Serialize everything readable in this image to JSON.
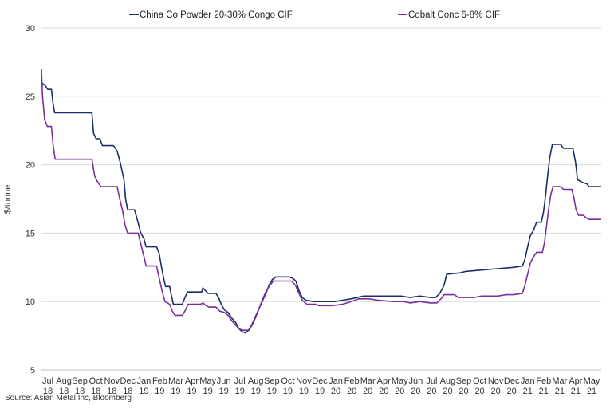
{
  "chart_data": {
    "type": "line",
    "title": "",
    "xlabel": "",
    "ylabel": "$/tonne",
    "ylim": [
      5,
      30
    ],
    "yticks": [
      5,
      10,
      15,
      20,
      25,
      30
    ],
    "grid": true,
    "legend_position": "top",
    "source": "Source: Asian Metal Inc, Bloomberg",
    "x_tick_labels": [
      {
        "month": "Jul",
        "year": "18"
      },
      {
        "month": "Aug",
        "year": "18"
      },
      {
        "month": "Sep",
        "year": "18"
      },
      {
        "month": "Oct",
        "year": "18"
      },
      {
        "month": "Nov",
        "year": "18"
      },
      {
        "month": "Dec",
        "year": "18"
      },
      {
        "month": "Jan",
        "year": "19"
      },
      {
        "month": "Feb",
        "year": "19"
      },
      {
        "month": "Mar",
        "year": "19"
      },
      {
        "month": "Apr",
        "year": "19"
      },
      {
        "month": "May",
        "year": "19"
      },
      {
        "month": "Jun",
        "year": "19"
      },
      {
        "month": "Jul",
        "year": "19"
      },
      {
        "month": "Aug",
        "year": "19"
      },
      {
        "month": "Sep",
        "year": "19"
      },
      {
        "month": "Oct",
        "year": "19"
      },
      {
        "month": "Nov",
        "year": "19"
      },
      {
        "month": "Dec",
        "year": "19"
      },
      {
        "month": "Jan",
        "year": "20"
      },
      {
        "month": "Feb",
        "year": "20"
      },
      {
        "month": "Mar",
        "year": "20"
      },
      {
        "month": "Apr",
        "year": "20"
      },
      {
        "month": "May",
        "year": "20"
      },
      {
        "month": "Jun",
        "year": "20"
      },
      {
        "month": "Jul",
        "year": "20"
      },
      {
        "month": "Aug",
        "year": "20"
      },
      {
        "month": "Sep",
        "year": "20"
      },
      {
        "month": "Oct",
        "year": "20"
      },
      {
        "month": "Nov",
        "year": "20"
      },
      {
        "month": "Dec",
        "year": "20"
      },
      {
        "month": "Jan",
        "year": "21"
      },
      {
        "month": "Feb",
        "year": "21"
      },
      {
        "month": "Mar",
        "year": "21"
      },
      {
        "month": "Apr",
        "year": "21"
      },
      {
        "month": "May",
        "year": "21"
      }
    ],
    "series": [
      {
        "name": "China Co Powder 20-30% Congo CIF",
        "color": "#1b2f66",
        "points": [
          [
            "2018-07-01",
            26.0
          ],
          [
            "2018-07-08",
            25.8
          ],
          [
            "2018-07-13",
            25.5
          ],
          [
            "2018-07-20",
            25.5
          ],
          [
            "2018-07-23",
            24.5
          ],
          [
            "2018-07-26",
            23.8
          ],
          [
            "2018-08-15",
            23.8
          ],
          [
            "2018-09-15",
            23.8
          ],
          [
            "2018-10-05",
            23.8
          ],
          [
            "2018-10-08",
            22.3
          ],
          [
            "2018-10-13",
            21.9
          ],
          [
            "2018-10-20",
            21.9
          ],
          [
            "2018-10-25",
            21.4
          ],
          [
            "2018-11-15",
            21.4
          ],
          [
            "2018-11-22",
            21.0
          ],
          [
            "2018-11-27",
            20.3
          ],
          [
            "2018-12-01",
            19.6
          ],
          [
            "2018-12-05",
            18.9
          ],
          [
            "2018-12-08",
            17.5
          ],
          [
            "2018-12-12",
            16.7
          ],
          [
            "2018-12-25",
            16.7
          ],
          [
            "2018-12-31",
            15.9
          ],
          [
            "2019-01-06",
            15.0
          ],
          [
            "2019-01-12",
            14.6
          ],
          [
            "2019-01-16",
            14.0
          ],
          [
            "2019-02-05",
            14.0
          ],
          [
            "2019-02-10",
            13.5
          ],
          [
            "2019-02-14",
            12.6
          ],
          [
            "2019-02-18",
            11.8
          ],
          [
            "2019-02-22",
            11.1
          ],
          [
            "2019-03-02",
            11.1
          ],
          [
            "2019-03-06",
            10.3
          ],
          [
            "2019-03-09",
            9.8
          ],
          [
            "2019-03-26",
            9.8
          ],
          [
            "2019-03-31",
            10.3
          ],
          [
            "2019-04-05",
            10.7
          ],
          [
            "2019-05-02",
            10.7
          ],
          [
            "2019-05-04",
            11.0
          ],
          [
            "2019-05-09",
            10.8
          ],
          [
            "2019-05-14",
            10.6
          ],
          [
            "2019-05-29",
            10.6
          ],
          [
            "2019-06-03",
            10.3
          ],
          [
            "2019-06-08",
            9.8
          ],
          [
            "2019-06-14",
            9.4
          ],
          [
            "2019-06-21",
            9.2
          ],
          [
            "2019-06-28",
            8.8
          ],
          [
            "2019-07-05",
            8.5
          ],
          [
            "2019-07-12",
            8.0
          ],
          [
            "2019-07-18",
            7.8
          ],
          [
            "2019-07-24",
            7.7
          ],
          [
            "2019-07-30",
            7.9
          ],
          [
            "2019-08-05",
            8.3
          ],
          [
            "2019-08-12",
            8.9
          ],
          [
            "2019-08-18",
            9.4
          ],
          [
            "2019-08-25",
            10.0
          ],
          [
            "2019-09-01",
            10.6
          ],
          [
            "2019-09-07",
            11.2
          ],
          [
            "2019-09-13",
            11.6
          ],
          [
            "2019-09-20",
            11.8
          ],
          [
            "2019-10-15",
            11.8
          ],
          [
            "2019-10-22",
            11.7
          ],
          [
            "2019-10-28",
            11.5
          ],
          [
            "2019-11-03",
            10.8
          ],
          [
            "2019-11-09",
            10.3
          ],
          [
            "2019-11-16",
            10.1
          ],
          [
            "2019-12-01",
            10.0
          ],
          [
            "2020-01-10",
            10.0
          ],
          [
            "2020-01-25",
            10.1
          ],
          [
            "2020-02-10",
            10.2
          ],
          [
            "2020-03-05",
            10.4
          ],
          [
            "2020-04-15",
            10.4
          ],
          [
            "2020-05-15",
            10.4
          ],
          [
            "2020-06-01",
            10.3
          ],
          [
            "2020-06-20",
            10.4
          ],
          [
            "2020-07-10",
            10.3
          ],
          [
            "2020-07-20",
            10.3
          ],
          [
            "2020-07-28",
            10.6
          ],
          [
            "2020-08-05",
            11.2
          ],
          [
            "2020-08-10",
            12.0
          ],
          [
            "2020-09-05",
            12.1
          ],
          [
            "2020-09-15",
            12.2
          ],
          [
            "2020-10-15",
            12.3
          ],
          [
            "2020-11-15",
            12.4
          ],
          [
            "2020-12-15",
            12.5
          ],
          [
            "2021-01-01",
            12.6
          ],
          [
            "2021-01-06",
            13.1
          ],
          [
            "2021-01-11",
            14.0
          ],
          [
            "2021-01-16",
            14.8
          ],
          [
            "2021-01-22",
            15.2
          ],
          [
            "2021-01-28",
            15.8
          ],
          [
            "2021-02-06",
            15.8
          ],
          [
            "2021-02-10",
            16.5
          ],
          [
            "2021-02-14",
            17.7
          ],
          [
            "2021-02-18",
            19.2
          ],
          [
            "2021-02-22",
            20.5
          ],
          [
            "2021-02-27",
            21.5
          ],
          [
            "2021-03-15",
            21.5
          ],
          [
            "2021-03-20",
            21.2
          ],
          [
            "2021-04-07",
            21.2
          ],
          [
            "2021-04-12",
            20.2
          ],
          [
            "2021-04-16",
            18.9
          ],
          [
            "2021-04-26",
            18.7
          ],
          [
            "2021-05-04",
            18.6
          ],
          [
            "2021-05-08",
            18.4
          ],
          [
            "2021-05-31",
            18.4
          ]
        ]
      },
      {
        "name": "Cobalt Conc 6-8% CIF",
        "color": "#7a2f9e",
        "points": [
          [
            "2018-07-01",
            27.0
          ],
          [
            "2018-07-03",
            25.0
          ],
          [
            "2018-07-07",
            23.3
          ],
          [
            "2018-07-12",
            22.8
          ],
          [
            "2018-07-20",
            22.8
          ],
          [
            "2018-07-23",
            21.5
          ],
          [
            "2018-07-27",
            20.4
          ],
          [
            "2018-08-15",
            20.4
          ],
          [
            "2018-09-15",
            20.4
          ],
          [
            "2018-10-05",
            20.4
          ],
          [
            "2018-10-10",
            19.2
          ],
          [
            "2018-10-15",
            18.8
          ],
          [
            "2018-10-22",
            18.4
          ],
          [
            "2018-11-22",
            18.4
          ],
          [
            "2018-11-27",
            17.5
          ],
          [
            "2018-12-02",
            16.7
          ],
          [
            "2018-12-07",
            15.6
          ],
          [
            "2018-12-12",
            15.0
          ],
          [
            "2019-01-01",
            15.0
          ],
          [
            "2019-01-06",
            14.2
          ],
          [
            "2019-01-12",
            13.3
          ],
          [
            "2019-01-16",
            12.6
          ],
          [
            "2019-02-05",
            12.6
          ],
          [
            "2019-02-10",
            11.7
          ],
          [
            "2019-02-16",
            10.7
          ],
          [
            "2019-02-21",
            10.0
          ],
          [
            "2019-03-02",
            9.8
          ],
          [
            "2019-03-07",
            9.3
          ],
          [
            "2019-03-12",
            9.0
          ],
          [
            "2019-03-26",
            9.0
          ],
          [
            "2019-03-31",
            9.3
          ],
          [
            "2019-04-06",
            9.8
          ],
          [
            "2019-04-30",
            9.8
          ],
          [
            "2019-05-04",
            9.9
          ],
          [
            "2019-05-10",
            9.7
          ],
          [
            "2019-05-16",
            9.6
          ],
          [
            "2019-05-29",
            9.6
          ],
          [
            "2019-06-05",
            9.3
          ],
          [
            "2019-06-14",
            9.2
          ],
          [
            "2019-06-21",
            9.0
          ],
          [
            "2019-06-28",
            8.6
          ],
          [
            "2019-07-05",
            8.3
          ],
          [
            "2019-07-12",
            8.0
          ],
          [
            "2019-07-20",
            7.9
          ],
          [
            "2019-07-31",
            7.9
          ],
          [
            "2019-08-06",
            8.3
          ],
          [
            "2019-08-12",
            8.8
          ],
          [
            "2019-08-19",
            9.5
          ],
          [
            "2019-08-26",
            10.2
          ],
          [
            "2019-09-02",
            10.8
          ],
          [
            "2019-09-09",
            11.2
          ],
          [
            "2019-09-15",
            11.5
          ],
          [
            "2019-10-20",
            11.5
          ],
          [
            "2019-10-27",
            11.2
          ],
          [
            "2019-11-03",
            10.6
          ],
          [
            "2019-11-09",
            10.1
          ],
          [
            "2019-11-18",
            9.8
          ],
          [
            "2019-12-05",
            9.8
          ],
          [
            "2019-12-10",
            9.7
          ],
          [
            "2020-01-05",
            9.7
          ],
          [
            "2020-01-25",
            9.8
          ],
          [
            "2020-02-10",
            10.0
          ],
          [
            "2020-02-25",
            10.2
          ],
          [
            "2020-03-15",
            10.2
          ],
          [
            "2020-04-01",
            10.1
          ],
          [
            "2020-05-01",
            10.0
          ],
          [
            "2020-05-20",
            10.0
          ],
          [
            "2020-06-01",
            9.9
          ],
          [
            "2020-06-20",
            10.0
          ],
          [
            "2020-07-10",
            9.9
          ],
          [
            "2020-07-22",
            9.9
          ],
          [
            "2020-07-30",
            10.2
          ],
          [
            "2020-08-05",
            10.5
          ],
          [
            "2020-08-25",
            10.5
          ],
          [
            "2020-09-01",
            10.3
          ],
          [
            "2020-10-01",
            10.3
          ],
          [
            "2020-10-15",
            10.4
          ],
          [
            "2020-11-15",
            10.4
          ],
          [
            "2020-12-01",
            10.5
          ],
          [
            "2020-12-15",
            10.5
          ],
          [
            "2021-01-01",
            10.6
          ],
          [
            "2021-01-06",
            11.2
          ],
          [
            "2021-01-11",
            12.0
          ],
          [
            "2021-01-16",
            12.8
          ],
          [
            "2021-01-21",
            13.2
          ],
          [
            "2021-01-28",
            13.6
          ],
          [
            "2021-02-08",
            13.6
          ],
          [
            "2021-02-12",
            14.3
          ],
          [
            "2021-02-16",
            15.5
          ],
          [
            "2021-02-20",
            16.8
          ],
          [
            "2021-02-24",
            17.8
          ],
          [
            "2021-02-28",
            18.4
          ],
          [
            "2021-03-15",
            18.4
          ],
          [
            "2021-03-20",
            18.2
          ],
          [
            "2021-04-05",
            18.2
          ],
          [
            "2021-04-09",
            17.6
          ],
          [
            "2021-04-13",
            16.7
          ],
          [
            "2021-04-18",
            16.3
          ],
          [
            "2021-04-27",
            16.3
          ],
          [
            "2021-05-03",
            16.1
          ],
          [
            "2021-05-08",
            16.0
          ],
          [
            "2021-05-31",
            16.0
          ]
        ]
      }
    ]
  }
}
